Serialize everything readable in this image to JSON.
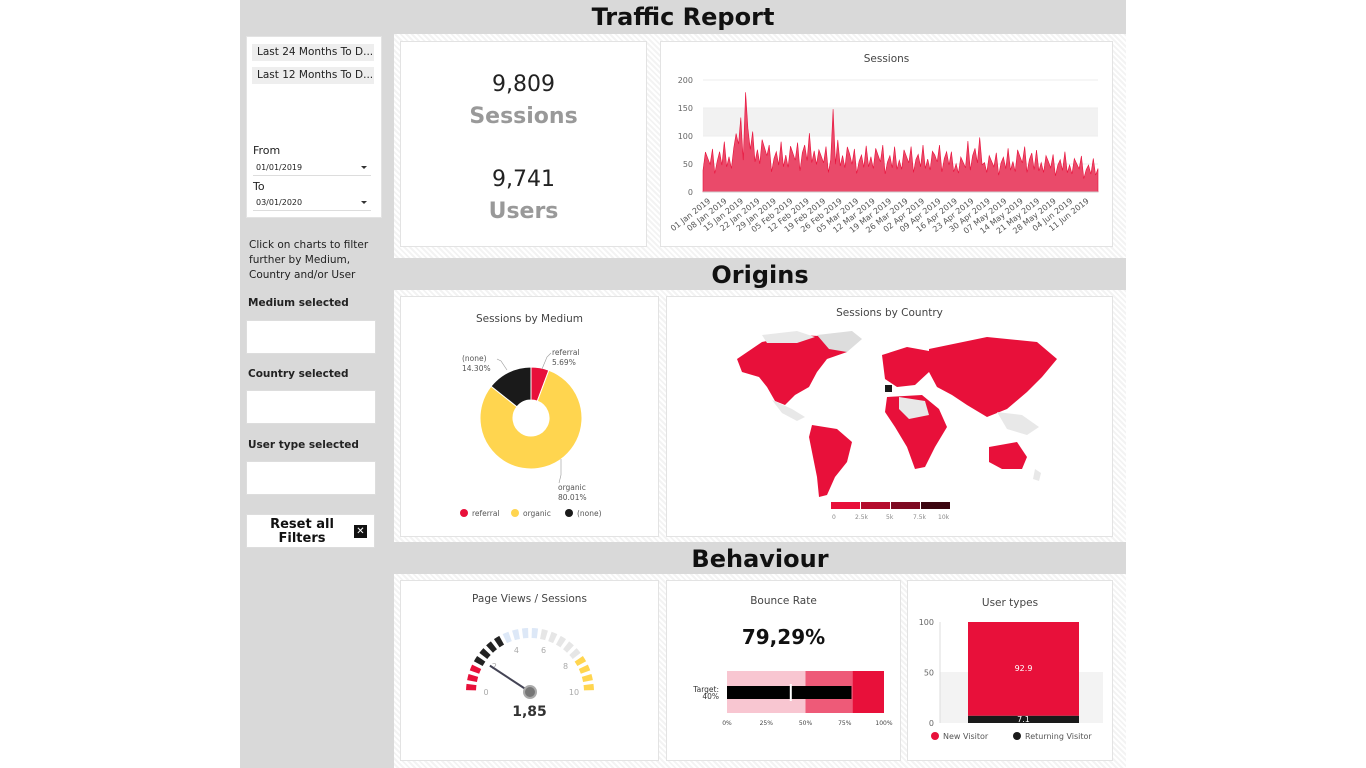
{
  "titles": {
    "traffic": "Traffic Report",
    "origins": "Origins",
    "behaviour": "Behaviour"
  },
  "sidebar": {
    "range1": "Last 24 Months To D...",
    "range2": "Last 12 Months To D...",
    "from_label": "From",
    "from_value": "01/01/2019",
    "to_label": "To",
    "to_value": "03/01/2020",
    "help": "Click on charts to filter further by Medium, Country and/or User",
    "medium": "Medium selected",
    "country": "Country selected",
    "usertype": "User type selected",
    "reset": "Reset all Filters"
  },
  "kpis": {
    "sessions_value": "9,809",
    "sessions_label": "Sessions",
    "users_value": "9,741",
    "users_label": "Users"
  },
  "sessions_chart": {
    "title": "Sessions",
    "y_ticks": [
      "0",
      "50",
      "100",
      "150",
      "200"
    ],
    "x_ticks": [
      "01 Jan 2019",
      "08 Jan 2019",
      "15 Jan 2019",
      "22 Jan 2019",
      "29 Jan 2019",
      "05 Feb 2019",
      "12 Feb 2019",
      "19 Feb 2019",
      "26 Feb 2019",
      "05 Mar 2019",
      "12 Mar 2019",
      "19 Mar 2019",
      "26 Mar 2019",
      "02 Apr 2019",
      "09 Apr 2019",
      "16 Apr 2019",
      "23 Apr 2019",
      "30 Apr 2019",
      "07 May 2019",
      "14 May 2019",
      "21 May 2019",
      "28 May 2019",
      "04 Jun 2019",
      "11 Jun 2019"
    ]
  },
  "medium_chart": {
    "title": "Sessions by Medium",
    "legend": [
      "referral",
      "organic",
      "(none)"
    ],
    "labels": {
      "referral": "referral",
      "referral_pct": "5.69%",
      "organic": "organic",
      "organic_pct": "80.01%",
      "none": "(none)",
      "none_pct": "14.30%"
    }
  },
  "country_chart": {
    "title": "Sessions by Country",
    "scale": [
      "0",
      "2.5k",
      "5k",
      "7.5k",
      "10k"
    ]
  },
  "pageviews": {
    "title": "Page Views / Sessions",
    "value": "1,85",
    "ticks": [
      "0",
      "2",
      "4",
      "6",
      "8",
      "10"
    ]
  },
  "bounce": {
    "title": "Bounce Rate",
    "value": "79,29%",
    "target_label": "Target:",
    "target_value": "40%",
    "ticks": [
      "0%",
      "25%",
      "50%",
      "75%",
      "100%"
    ]
  },
  "usertypes": {
    "title": "User types",
    "y_ticks": [
      "0",
      "50",
      "100"
    ],
    "new_value": "92.9",
    "ret_value": "7.1",
    "legend_new": "New Visitor",
    "legend_ret": "Returning Visitor"
  },
  "colors": {
    "accent": "#e8103a",
    "yellow": "#ffd54f",
    "dark": "#1a1a1a",
    "area": "#ea4a6a"
  },
  "chart_data": [
    {
      "type": "area",
      "title": "Sessions",
      "ylim": [
        0,
        200
      ],
      "x": [
        "01 Jan 2019",
        "08 Jan 2019",
        "15 Jan 2019",
        "22 Jan 2019",
        "29 Jan 2019",
        "05 Feb 2019",
        "12 Feb 2019",
        "19 Feb 2019",
        "26 Feb 2019",
        "05 Mar 2019",
        "12 Mar 2019",
        "19 Mar 2019",
        "26 Mar 2019",
        "02 Apr 2019",
        "09 Apr 2019",
        "16 Apr 2019",
        "23 Apr 2019",
        "30 Apr 2019",
        "07 May 2019",
        "14 May 2019",
        "21 May 2019",
        "28 May 2019",
        "04 Jun 2019",
        "11 Jun 2019"
      ],
      "values": [
        55,
        60,
        95,
        72,
        60,
        63,
        70,
        58,
        62,
        55,
        60,
        54,
        58,
        56,
        60,
        48,
        65,
        50,
        52,
        58,
        50,
        48,
        46,
        40
      ]
    },
    {
      "type": "pie",
      "title": "Sessions by Medium",
      "categories": [
        "referral",
        "organic",
        "(none)"
      ],
      "values": [
        5.69,
        80.01,
        14.3
      ]
    },
    {
      "type": "bar",
      "title": "User types",
      "categories": [
        "New Visitor",
        "Returning Visitor"
      ],
      "values": [
        92.9,
        7.1
      ],
      "ylim": [
        0,
        100
      ]
    }
  ]
}
